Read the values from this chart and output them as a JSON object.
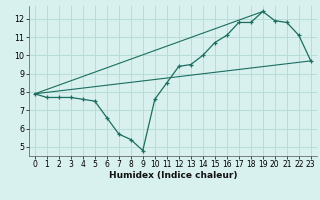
{
  "title": "",
  "xlabel": "Humidex (Indice chaleur)",
  "background_color": "#d8f0ee",
  "grid_color": "#b8dcd8",
  "line_color": "#1a6e60",
  "xlim": [
    -0.5,
    23.5
  ],
  "ylim": [
    4.5,
    12.7
  ],
  "xticks": [
    0,
    1,
    2,
    3,
    4,
    5,
    6,
    7,
    8,
    9,
    10,
    11,
    12,
    13,
    14,
    15,
    16,
    17,
    18,
    19,
    20,
    21,
    22,
    23
  ],
  "yticks": [
    5,
    6,
    7,
    8,
    9,
    10,
    11,
    12
  ],
  "line1_x": [
    0,
    1,
    2,
    3,
    4,
    5,
    6,
    7,
    8,
    9,
    10,
    11,
    12,
    13,
    14,
    15,
    16,
    17,
    18,
    19,
    20,
    21,
    22,
    23
  ],
  "line1_y": [
    7.9,
    7.7,
    7.7,
    7.7,
    7.6,
    7.5,
    6.6,
    5.7,
    5.4,
    4.8,
    7.6,
    8.5,
    9.4,
    9.5,
    10.0,
    10.7,
    11.1,
    11.8,
    11.8,
    12.4,
    11.9,
    11.8,
    11.1,
    9.7
  ],
  "line2_x": [
    0,
    23
  ],
  "line2_y": [
    7.9,
    9.7
  ],
  "line3_x": [
    0,
    19
  ],
  "line3_y": [
    7.9,
    12.4
  ],
  "xlabel_fontsize": 6.5,
  "xlabel_fontweight": "bold",
  "tick_fontsize": 5.5
}
